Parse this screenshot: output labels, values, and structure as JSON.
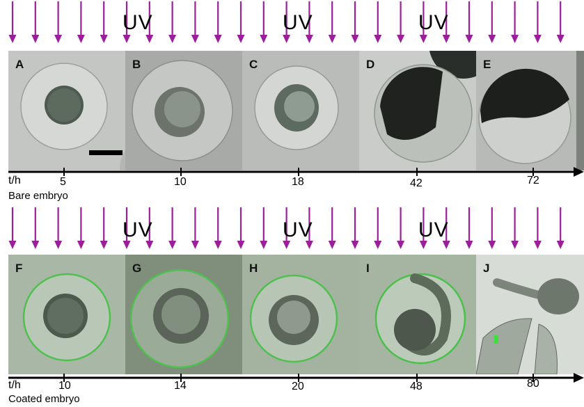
{
  "top": {
    "uv_labels": [
      "UV",
      "UV",
      "UV"
    ],
    "panels": [
      {
        "letter": "A",
        "kind": "bare"
      },
      {
        "letter": "B",
        "kind": "bare"
      },
      {
        "letter": "C",
        "kind": "bare"
      },
      {
        "letter": "D",
        "kind": "dead"
      },
      {
        "letter": "E",
        "kind": "dead"
      }
    ],
    "axis_label": "t/h",
    "times": [
      "5",
      "10",
      "18",
      "42",
      "72"
    ],
    "caption": "Bare embryo"
  },
  "bottom": {
    "uv_labels": [
      "UV",
      "UV",
      "UV"
    ],
    "panels": [
      {
        "letter": "F",
        "kind": "coated"
      },
      {
        "letter": "G",
        "kind": "coated"
      },
      {
        "letter": "H",
        "kind": "coated"
      },
      {
        "letter": "I",
        "kind": "larva"
      },
      {
        "letter": "J",
        "kind": "hatched"
      }
    ],
    "axis_label": "t/h",
    "times": [
      "10",
      "14",
      "20",
      "48",
      "80"
    ],
    "caption": "Coated embryo"
  },
  "colors": {
    "arrow": "#9b1f9b",
    "axis": "#000000",
    "bare_bg": "#bfc3bf",
    "coated_bg": "#a8b9a4",
    "coat_rim": "#3fbf3f"
  }
}
